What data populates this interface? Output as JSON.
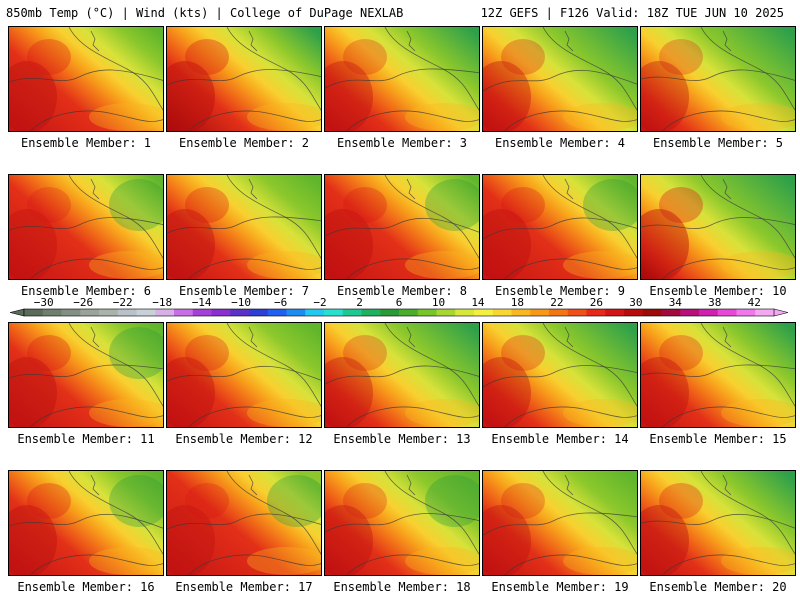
{
  "header": {
    "left": "850mb Temp (°C) | Wind (kts) | College of DuPage NEXLAB",
    "right": "12Z GEFS | F126 Valid: 18Z TUE JUN 10 2025"
  },
  "colorbar": {
    "labels": [
      "−30",
      "−26",
      "−22",
      "−18",
      "−14",
      "−10",
      "−6",
      "−2",
      "2",
      "6",
      "10",
      "14",
      "18",
      "22",
      "26",
      "30",
      "34",
      "38",
      "42"
    ],
    "min": -32,
    "max": 44,
    "step": 2,
    "colors": [
      "#5a6b5a",
      "#6f7f6f",
      "#848f84",
      "#9aa39a",
      "#aab3aa",
      "#b9c2c9",
      "#c8d0d8",
      "#d8b0e8",
      "#c86ee6",
      "#a63fd8",
      "#8a2fd0",
      "#5a32c8",
      "#2e3fd6",
      "#2060f0",
      "#1c8cf2",
      "#22c8f0",
      "#28e0d0",
      "#1ec890",
      "#20b060",
      "#2a9a38",
      "#4aae2a",
      "#78c52a",
      "#a8d630",
      "#d8e83a",
      "#f4f040",
      "#f8d830",
      "#f8b820",
      "#f89818",
      "#f47418",
      "#ee5018",
      "#e82818",
      "#d41414",
      "#b80c0c",
      "#9c0a0a",
      "#a00a3c",
      "#b8107a",
      "#d020b0",
      "#e848d8",
      "#f078ea",
      "#f4a8f2"
    ]
  },
  "panel_label_prefix": "Ensemble Member: ",
  "members": [
    1,
    2,
    3,
    4,
    5,
    6,
    7,
    8,
    9,
    10,
    11,
    12,
    13,
    14,
    15,
    16,
    17,
    18,
    19,
    20
  ]
}
